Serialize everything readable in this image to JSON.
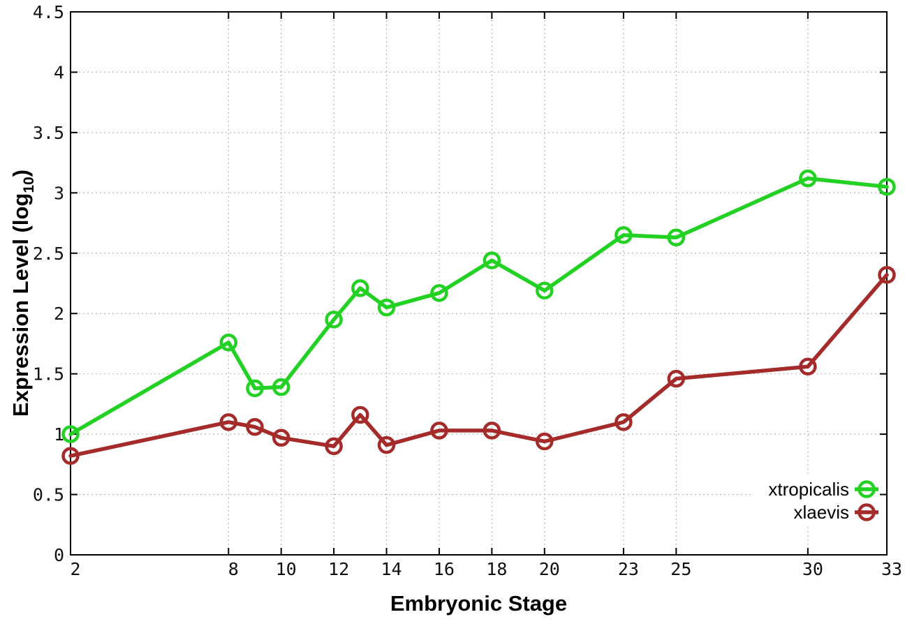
{
  "figure": {
    "background_color": "#ffffff",
    "axis_color": "#000000",
    "grid_color": "#b5b5b5",
    "tick_label_color": "#111111"
  },
  "chart_data": {
    "type": "line",
    "title": "",
    "xlabel": "Embryonic Stage",
    "ylabel_base": "Expression Level (log",
    "ylabel_sub": "10",
    "ylabel_close": ")",
    "xlim": [
      2,
      33
    ],
    "ylim": [
      0,
      4.5
    ],
    "x_ticks": [
      2,
      8,
      10,
      12,
      14,
      16,
      18,
      20,
      23,
      25,
      30,
      33
    ],
    "x_tick_labels": [
      "2",
      "8",
      "10",
      "12",
      "14",
      "16",
      "18",
      "20",
      "23",
      "25",
      "30",
      "33"
    ],
    "y_ticks": [
      0,
      0.5,
      1,
      1.5,
      2,
      2.5,
      3,
      3.5,
      4,
      4.5
    ],
    "y_tick_labels": [
      "0",
      "0.5",
      "1",
      "1.5",
      "2",
      "2.5",
      "3",
      "3.5",
      "4",
      "4.5"
    ],
    "grid": true,
    "grid_style": "dotted",
    "legend_position": "bottom-right-inside",
    "marker": "open-circle",
    "x": [
      2,
      8,
      9,
      10,
      12,
      13,
      14,
      16,
      18,
      20,
      23,
      25,
      30,
      33
    ],
    "series": [
      {
        "name": "xtropicalis",
        "color": "#23d123",
        "values": [
          1.0,
          1.76,
          1.38,
          1.39,
          1.95,
          2.21,
          2.05,
          2.17,
          2.44,
          2.19,
          2.65,
          2.63,
          3.12,
          3.05
        ]
      },
      {
        "name": "xlaevis",
        "color": "#a52a2a",
        "values": [
          0.82,
          1.1,
          1.06,
          0.97,
          0.9,
          1.16,
          0.91,
          1.03,
          1.03,
          0.94,
          1.1,
          1.46,
          1.56,
          2.32
        ]
      }
    ]
  }
}
